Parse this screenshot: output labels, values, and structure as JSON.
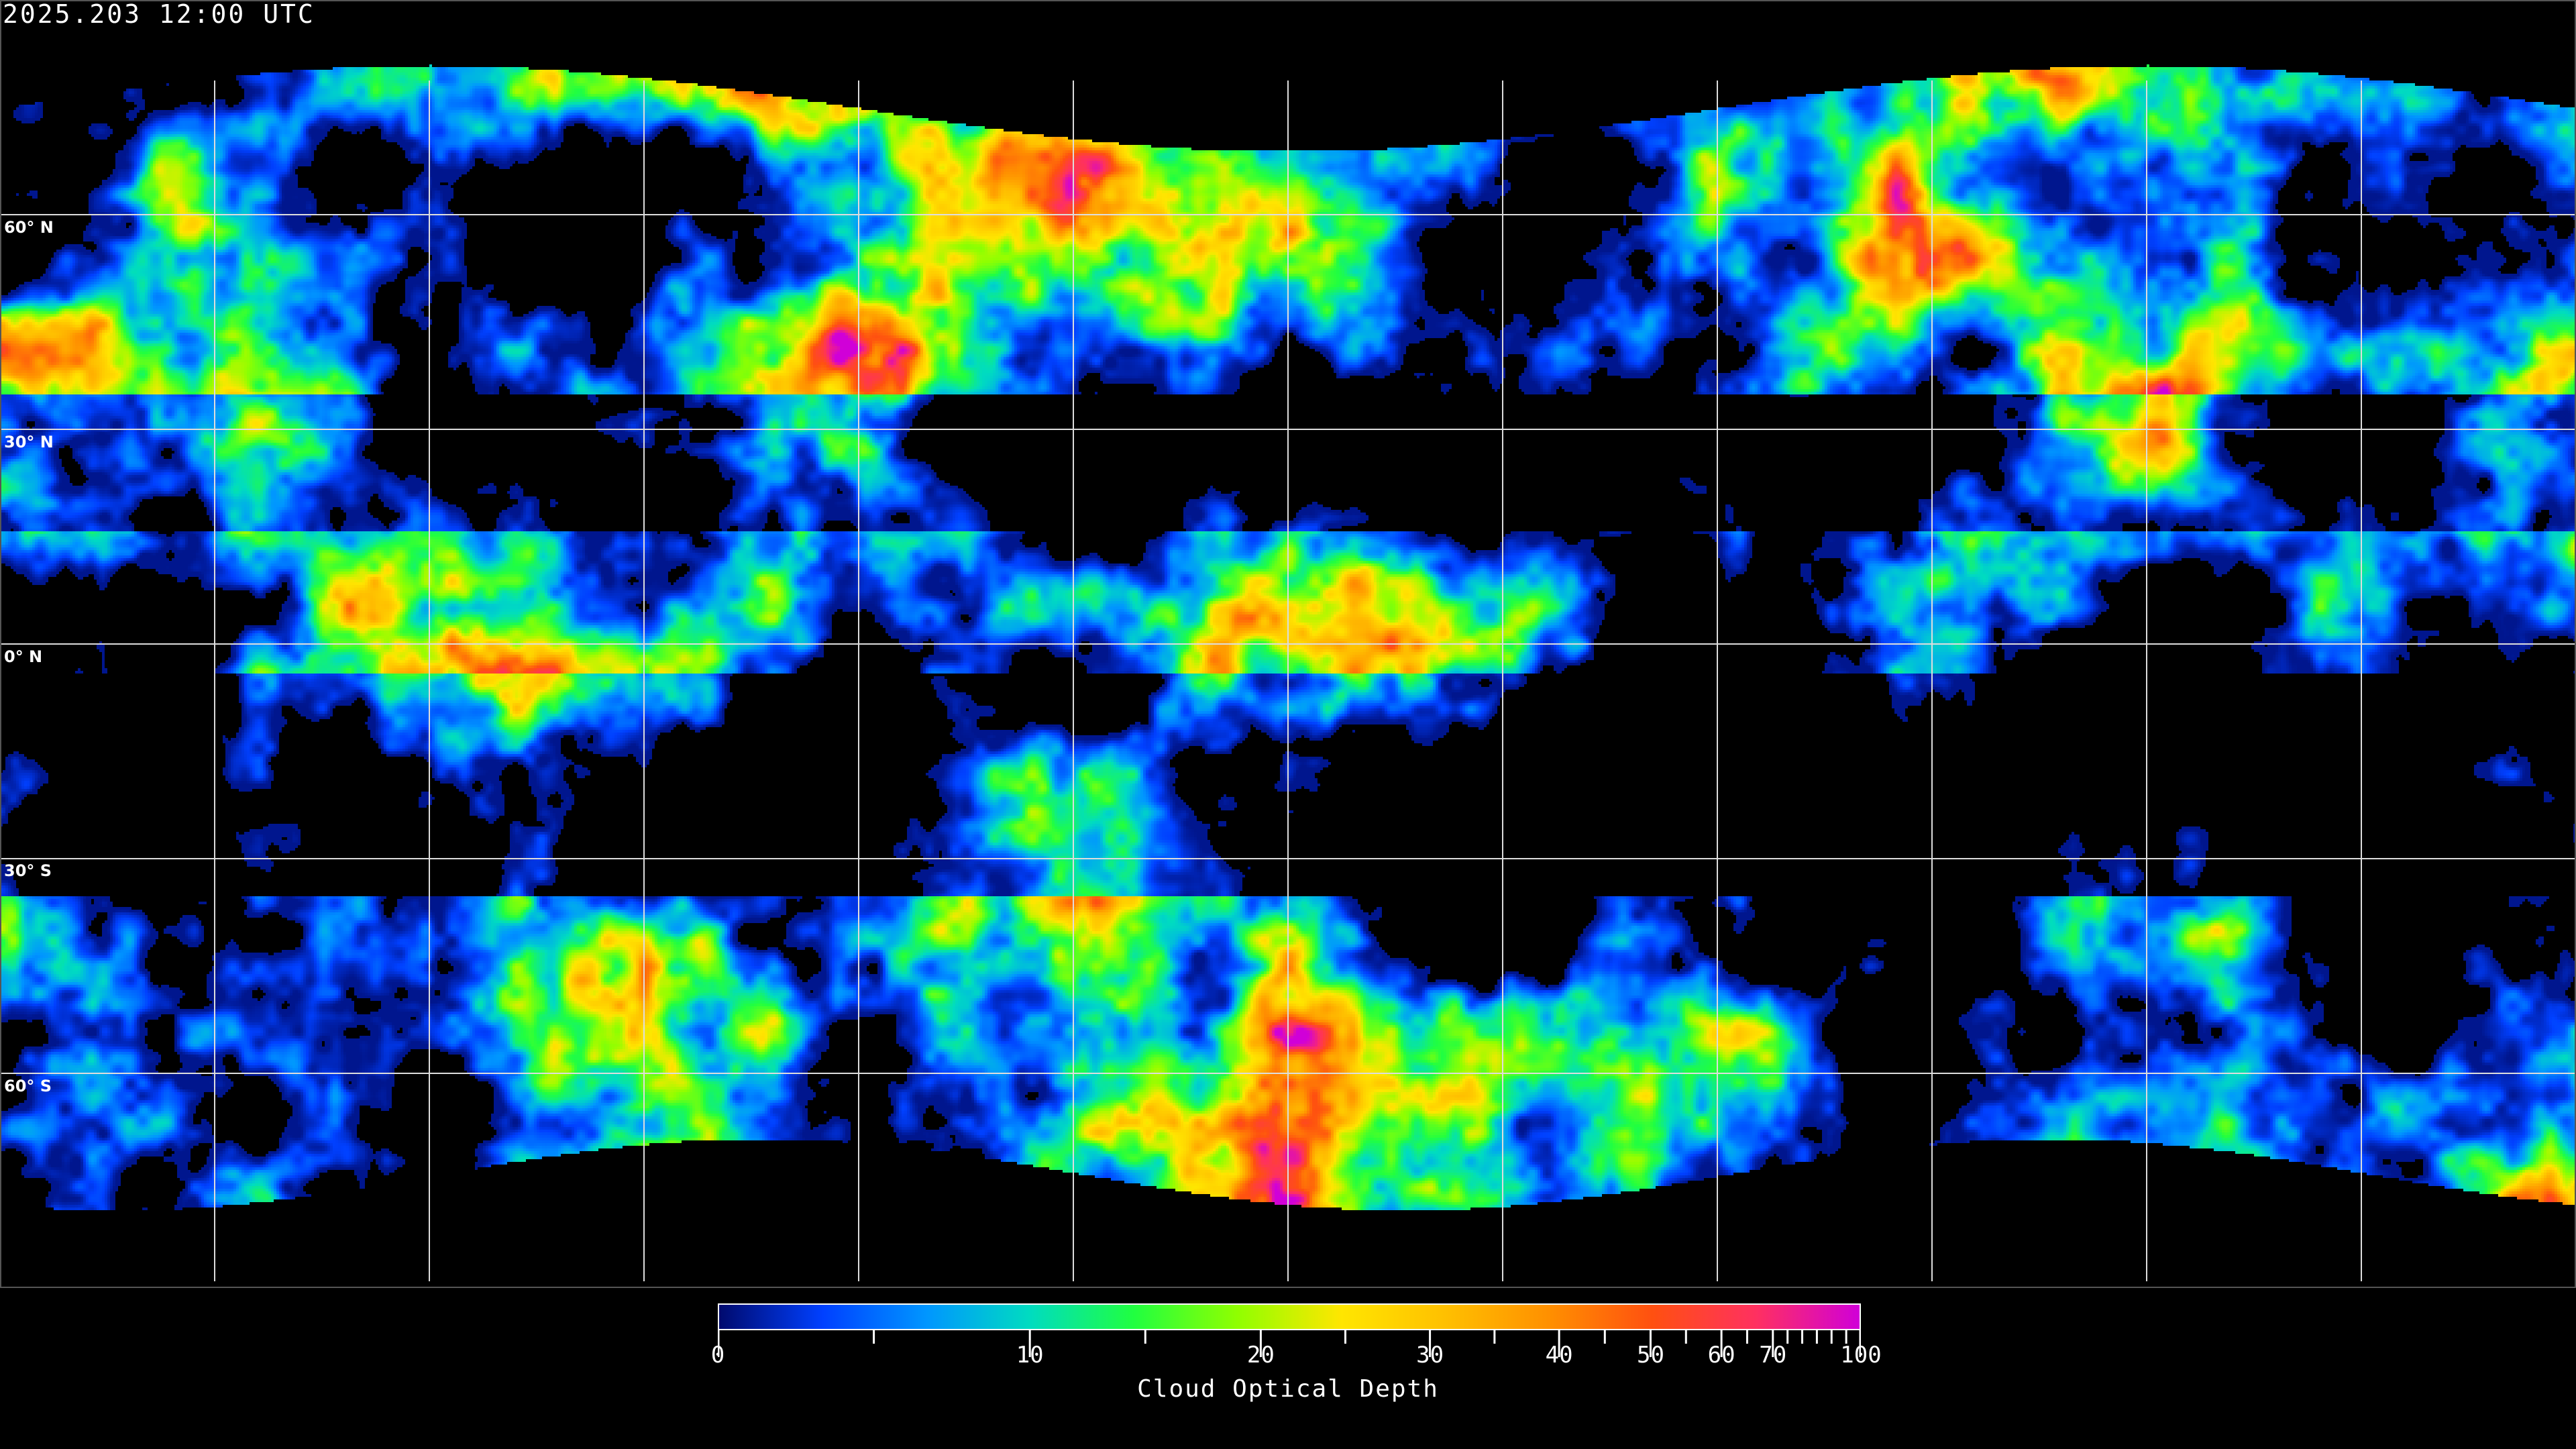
{
  "title": "2025.203 12:00 UTC",
  "map": {
    "projection": "equirectangular",
    "field": "cloud optical depth",
    "graticule_spacing_deg": 30,
    "lat_labels": [
      "60° N",
      "30° N",
      "0° N",
      "30° S",
      "60° S"
    ],
    "lat_values": [
      60,
      30,
      0,
      -30,
      -60
    ],
    "no_data_color": "#000000",
    "grid_color": "#ffffff",
    "coastline_color": "#ffffff"
  },
  "colorbar": {
    "label": "Cloud Optical Depth",
    "range": [
      0,
      100
    ],
    "tick_labels": [
      "0",
      "10",
      "20",
      "30",
      "40",
      "50",
      "60",
      "70",
      "100"
    ],
    "tick_values": [
      0,
      10,
      20,
      30,
      40,
      50,
      60,
      70,
      100
    ],
    "minor_tick_values": [
      5,
      15,
      25,
      35,
      45,
      55,
      65,
      75,
      80,
      85,
      90,
      95
    ],
    "colors": [
      "#000a6e",
      "#0040ff",
      "#0096ff",
      "#00dcc0",
      "#20ff40",
      "#90ff00",
      "#ffe600",
      "#ffc000",
      "#ff9000",
      "#ff5010",
      "#ff3060",
      "#d000d8"
    ]
  }
}
